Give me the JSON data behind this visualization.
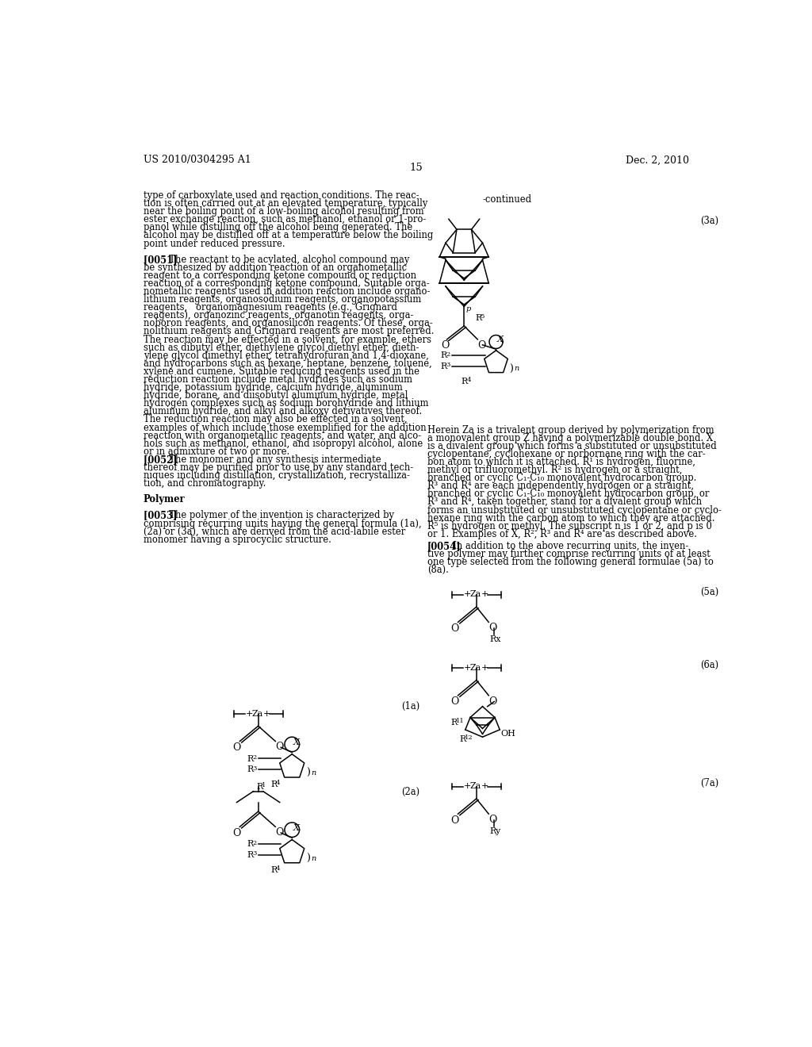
{
  "page_number": "15",
  "patent_number": "US 2010/0304295 A1",
  "patent_date": "Dec. 2, 2010",
  "bg": "#ffffff",
  "tc": "#000000",
  "left_col": [
    "type of carboxylate used and reaction conditions. The reac-",
    "tion is often carried out at an elevated temperature, typically",
    "near the boiling point of a low-boiling alcohol resulting from",
    "ester exchange reaction, such as methanol, ethanol or 1-pro-",
    "panol while distilling off the alcohol being generated. The",
    "alcohol may be distilled off at a temperature below the boiling",
    "point under reduced pressure.",
    "",
    "[0051]   The reactant to be acylated, alcohol compound may",
    "be synthesized by addition reaction of an organometallic",
    "reagent to a corresponding ketone compound or reduction",
    "reaction of a corresponding ketone compound. Suitable orga-",
    "nometallic reagents used in addition reaction include organo-",
    "lithium reagents, organosodium reagents, organopotassium",
    "reagents,   organomagnesium reagents (e.g., Grignard",
    "reagents), organozinc reagents, organotin reagents, orga-",
    "noboron reagents, and organosilicon reagents. Of these, orga-",
    "nolithium reagents and Grignard reagents are most preferred.",
    "The reaction may be effected in a solvent, for example, ethers",
    "such as dibutyl ether, diethylene glycol diethyl ether, dieth-",
    "ylene glycol dimethyl ether, tetrahydrofuran and 1,4-dioxane,",
    "and hydrocarbons such as hexane, heptane, benzene, toluene,",
    "xylene and cumene. Suitable reducing reagents used in the",
    "reduction reaction include metal hydrides such as sodium",
    "hydride, potassium hydride, calcium hydride, aluminum",
    "hydride, borane, and diisobutyl aluminum hydride, metal",
    "hydrogen complexes such as sodium borohydride and lithium",
    "aluminum hydride, and alkyl and alkoxy derivatives thereof.",
    "The reduction reaction may also be effected in a solvent,",
    "examples of which include those exemplified for the addition",
    "reaction with organometallic reagents, and water, and alco-",
    "hols such as methanol, ethanol, and isopropyl alcohol, alone",
    "or in admixture of two or more.",
    "[0052]   The monomer and any synthesis intermediate",
    "thereof may be purified prior to use by any standard tech-",
    "niques including distillation, crystallization, recrystalliza-",
    "tion, and chromatography.",
    "",
    "Polymer",
    "",
    "[0053]   The polymer of the invention is characterized by",
    "comprising recurring units having the general formula (1a),",
    "(2a) or (3a), which are derived from the acid-labile ester",
    "monomer having a spirocyclic structure."
  ],
  "right_desc": [
    "Herein Za is a trivalent group derived by polymerization from",
    "a monovalent group Z having a polymerizable double bond. X",
    "is a divalent group which forms a substituted or unsubstituted",
    "cyclopentane, cyclohexane or norbornane ring with the car-",
    "bon atom to which it is attached. R¹ is hydrogen, fluorine,",
    "methyl or trifluoromethyl. R² is hydrogen or a straight,",
    "branched or cyclic C₁-C₁₀ monovalent hydrocarbon group.",
    "R³ and R⁴ are each independently hydrogen or a straight,",
    "branched or cyclic C₁-C₁₀ monovalent hydrocarbon group, or",
    "R³ and R⁴, taken together, stand for a divalent group which",
    "forms an unsubstituted or unsubstituted cyclopentane or cyclo-",
    "hexane ring with the carbon atom to which they are attached.",
    "R⁵ is hydrogen or methyl. The subscript n is 1 or 2, and p is 0",
    "or 1. Examples of X, R², R³ and R⁴ are as described above."
  ],
  "right_desc2": [
    "[0054]   In addition to the above recurring units, the inven-",
    "tive polymer may further comprise recurring units of at least",
    "one type selected from the following general formulae (5a) to",
    "(8a)."
  ]
}
